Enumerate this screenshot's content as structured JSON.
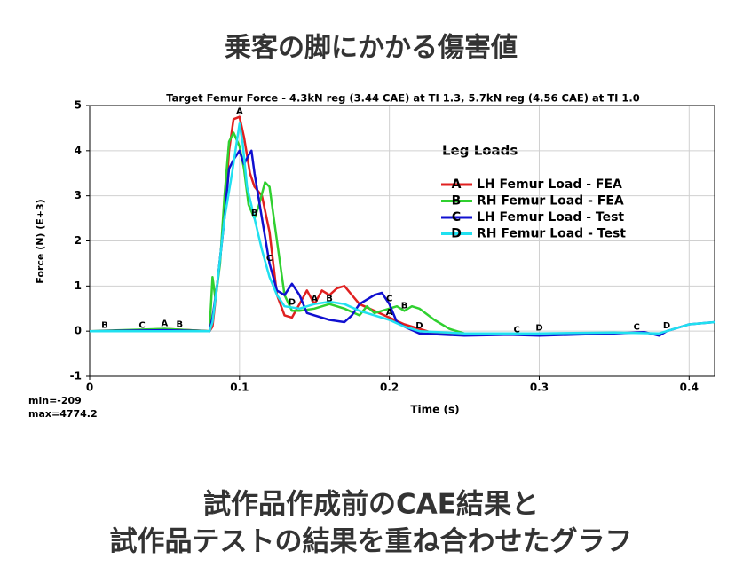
{
  "page_title": "乗客の脚にかかる傷害値",
  "caption": [
    "試作品作成前のCAE結果と",
    "試作品テストの結果を重ね合わせたグラフ"
  ],
  "chart_data": {
    "type": "line",
    "title": "Target Femur Force - 4.3kN reg (3.44 CAE) at TI 1.3, 5.7kN reg (4.56 CAE) at TI 1.0",
    "xlabel": "Time (s)",
    "ylabel": "Force (N) (E+3)",
    "legend_title": "Leg Loads",
    "stats": [
      "min=-209",
      "max=4774.2"
    ],
    "xlim": [
      0,
      0.417
    ],
    "ylim": [
      -1,
      5
    ],
    "xticks": [
      0,
      0.1,
      0.2,
      0.3,
      0.4
    ],
    "yticks": [
      -1,
      0,
      1,
      2,
      3,
      4,
      5
    ],
    "grid": true,
    "series": [
      {
        "name": "LH Femur Load - FEA",
        "marker": "A",
        "color": "#e02020",
        "x": [
          0,
          0.02,
          0.05,
          0.08,
          0.082,
          0.085,
          0.09,
          0.093,
          0.096,
          0.1,
          0.103,
          0.107,
          0.11,
          0.115,
          0.12,
          0.125,
          0.13,
          0.135,
          0.14,
          0.145,
          0.15,
          0.155,
          0.16,
          0.165,
          0.17,
          0.175,
          0.18,
          0.19,
          0.2,
          0.21,
          0.22,
          0.23,
          0.25
        ],
        "values": [
          0,
          0,
          0.05,
          0,
          0.1,
          1.0,
          2.5,
          4.0,
          4.7,
          4.75,
          4.3,
          3.5,
          3.2,
          3.0,
          2.2,
          0.8,
          0.35,
          0.3,
          0.6,
          0.9,
          0.6,
          0.9,
          0.8,
          0.95,
          1.0,
          0.8,
          0.6,
          0.45,
          0.3,
          0.15,
          0.05,
          -0.05,
          -0.05
        ],
        "label_x": [
          0.05,
          0.1,
          0.15,
          0.2
        ]
      },
      {
        "name": "RH Femur Load - FEA",
        "marker": "B",
        "color": "#30d030",
        "x": [
          0,
          0.05,
          0.08,
          0.082,
          0.084,
          0.087,
          0.09,
          0.093,
          0.096,
          0.1,
          0.103,
          0.106,
          0.11,
          0.113,
          0.117,
          0.12,
          0.125,
          0.13,
          0.135,
          0.14,
          0.15,
          0.16,
          0.17,
          0.18,
          0.185,
          0.19,
          0.2,
          0.205,
          0.21,
          0.215,
          0.22,
          0.23,
          0.24,
          0.25
        ],
        "values": [
          0,
          0.05,
          0,
          1.2,
          0.7,
          1.5,
          3.0,
          4.2,
          4.4,
          4.1,
          3.6,
          2.8,
          2.5,
          2.8,
          3.3,
          3.2,
          2.0,
          0.8,
          0.45,
          0.45,
          0.5,
          0.6,
          0.5,
          0.35,
          0.55,
          0.4,
          0.5,
          0.55,
          0.45,
          0.55,
          0.5,
          0.25,
          0.05,
          -0.05
        ],
        "label_x": [
          0.01,
          0.06,
          0.11,
          0.16,
          0.21
        ]
      },
      {
        "name": "LH Femur Load - Test",
        "marker": "C",
        "color": "#1010d0",
        "x": [
          0,
          0.05,
          0.08,
          0.082,
          0.085,
          0.09,
          0.093,
          0.096,
          0.1,
          0.103,
          0.106,
          0.108,
          0.11,
          0.115,
          0.12,
          0.125,
          0.13,
          0.135,
          0.14,
          0.145,
          0.15,
          0.16,
          0.17,
          0.175,
          0.18,
          0.19,
          0.195,
          0.2,
          0.205,
          0.21,
          0.22,
          0.25,
          0.28,
          0.3,
          0.35,
          0.37,
          0.38,
          0.385,
          0.4,
          0.417
        ],
        "values": [
          0,
          0.02,
          0,
          0.3,
          1.0,
          2.5,
          3.6,
          3.8,
          4.0,
          3.7,
          3.9,
          4.0,
          3.5,
          2.5,
          1.5,
          0.9,
          0.8,
          1.05,
          0.8,
          0.4,
          0.35,
          0.25,
          0.2,
          0.35,
          0.6,
          0.8,
          0.85,
          0.6,
          0.2,
          0.1,
          -0.05,
          -0.1,
          -0.08,
          -0.1,
          -0.05,
          -0.02,
          -0.1,
          0,
          0.15,
          0.2
        ],
        "label_x": [
          0.035,
          0.12,
          0.2,
          0.285,
          0.365
        ]
      },
      {
        "name": "RH Femur Load - Test",
        "marker": "D",
        "color": "#20e0f0",
        "x": [
          0,
          0.08,
          0.082,
          0.085,
          0.09,
          0.095,
          0.1,
          0.102,
          0.105,
          0.11,
          0.115,
          0.12,
          0.125,
          0.13,
          0.14,
          0.15,
          0.16,
          0.17,
          0.18,
          0.19,
          0.2,
          0.21,
          0.22,
          0.25,
          0.3,
          0.35,
          0.38,
          0.4,
          0.417
        ],
        "values": [
          0,
          0,
          0.2,
          1.0,
          2.5,
          3.5,
          4.6,
          4.2,
          3.2,
          2.5,
          1.8,
          1.2,
          0.8,
          0.55,
          0.5,
          0.6,
          0.65,
          0.6,
          0.45,
          0.35,
          0.25,
          0.1,
          0,
          -0.05,
          -0.05,
          -0.03,
          -0.05,
          0.15,
          0.2
        ],
        "label_x": [
          0.135,
          0.22,
          0.3,
          0.385
        ]
      }
    ]
  }
}
